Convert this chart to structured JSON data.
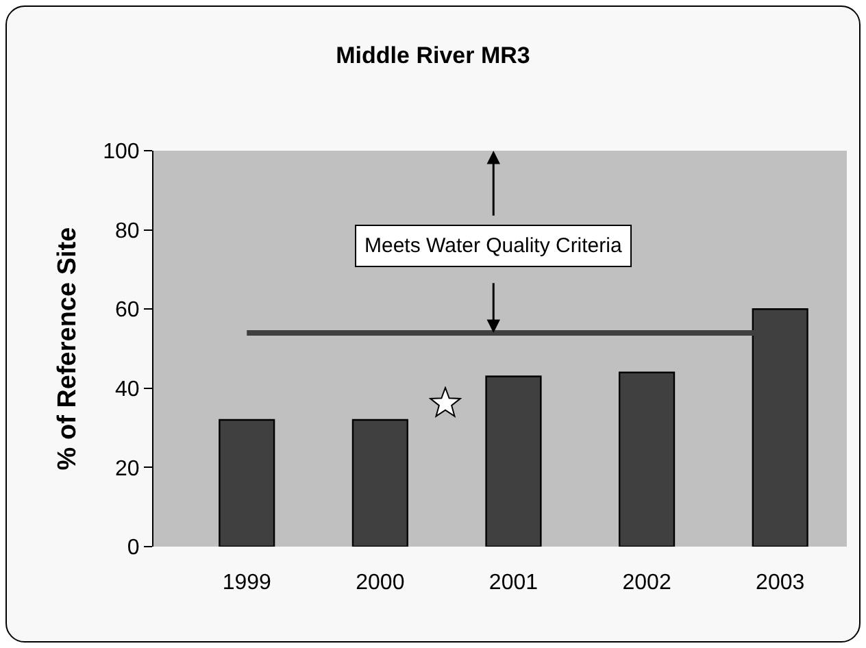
{
  "chart_data": {
    "type": "bar",
    "title": "Middle River MR3",
    "ylabel": "% of Reference Site",
    "categories": [
      "1999",
      "2000",
      "2001",
      "2002",
      "2003"
    ],
    "values": [
      32,
      32,
      43,
      44,
      60
    ],
    "color": "#404040",
    "ylim": [
      0,
      100
    ],
    "yticks": [
      0,
      20,
      40,
      60,
      80,
      100
    ],
    "grid": false,
    "legend": false,
    "ref_lines": [
      {
        "axis": "y",
        "value": 54,
        "label": "Meets Water Quality Criteria",
        "color": "#404040"
      }
    ]
  }
}
